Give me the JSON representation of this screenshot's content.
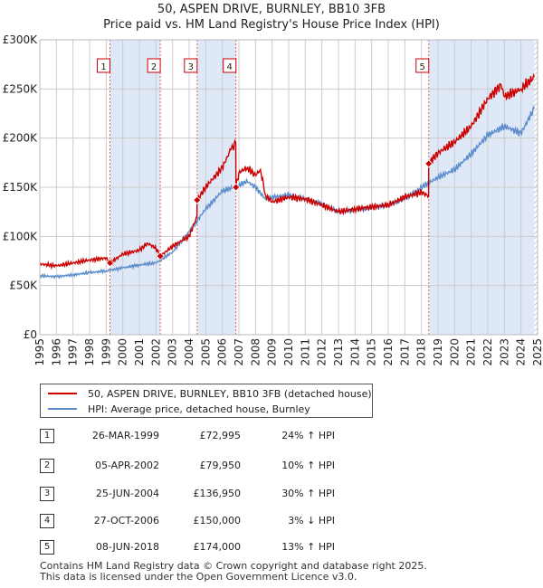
{
  "title": "50, ASPEN DRIVE, BURNLEY, BB10 3FB",
  "subtitle": "Price paid vs. HM Land Registry's House Price Index (HPI)",
  "colors": {
    "property": "#cc0000",
    "hpi": "#5b8ccc",
    "shade": "#dfe8f7",
    "grid": "#cccccc",
    "vline": "#e06060"
  },
  "chart_data": {
    "type": "line",
    "xlabel": "",
    "ylabel": "",
    "xlim": [
      1995,
      2025
    ],
    "ylim": [
      0,
      300000
    ],
    "grid": true,
    "y_ticks": [
      0,
      50000,
      100000,
      150000,
      200000,
      250000,
      300000
    ],
    "y_tick_labels": [
      "£0",
      "£50K",
      "£100K",
      "£150K",
      "£200K",
      "£250K",
      "£300K"
    ],
    "x_ticks": [
      1995,
      1996,
      1997,
      1998,
      1999,
      2000,
      2001,
      2002,
      2003,
      2004,
      2005,
      2006,
      2007,
      2008,
      2009,
      2010,
      2011,
      2012,
      2013,
      2014,
      2015,
      2016,
      2017,
      2018,
      2019,
      2020,
      2021,
      2022,
      2023,
      2024,
      2025
    ],
    "x_tick_labels": [
      "1995",
      "1996",
      "1997",
      "1998",
      "1999",
      "2000",
      "2001",
      "2002",
      "2003",
      "2004",
      "2005",
      "2006",
      "2007",
      "2008",
      "2009",
      "2010",
      "2011",
      "2012",
      "2013",
      "2014",
      "2015",
      "2016",
      "2017",
      "2018",
      "2019",
      "2020",
      "2021",
      "2022",
      "2023",
      "2024",
      "2025"
    ],
    "shaded_ranges": [
      [
        1999.23,
        2002.26
      ],
      [
        2004.48,
        2006.82
      ],
      [
        2018.44,
        2025
      ]
    ],
    "hatched_range": [
      2024.8,
      2025
    ],
    "sales": [
      {
        "label": "1",
        "x": 1999.23,
        "y": 72995
      },
      {
        "label": "2",
        "x": 2002.26,
        "y": 79950
      },
      {
        "label": "3",
        "x": 2004.48,
        "y": 136950
      },
      {
        "label": "4",
        "x": 2006.82,
        "y": 150000
      },
      {
        "label": "5",
        "x": 2018.44,
        "y": 174000
      }
    ],
    "series": [
      {
        "name": "50, ASPEN DRIVE, BURNLEY, BB10 3FB (detached house)",
        "color": "#cc0000",
        "x": [
          1995,
          1996,
          1997,
          1998,
          1999,
          1999.23,
          2000,
          2001,
          2001.5,
          2002,
          2002.26,
          2003,
          2004,
          2004.47,
          2004.48,
          2005,
          2006,
          2006.5,
          2006.81,
          2006.82,
          2007,
          2007.5,
          2008,
          2008.3,
          2008.6,
          2009,
          2010,
          2011,
          2012,
          2013,
          2014,
          2015,
          2016,
          2017,
          2018,
          2018.43,
          2018.44,
          2019,
          2020,
          2021,
          2022,
          2022.8,
          2023,
          2024,
          2024.8
        ],
        "values": [
          72000,
          70000,
          73000,
          76000,
          78000,
          72995,
          82000,
          86000,
          93000,
          88000,
          79950,
          90000,
          100000,
          120000,
          136950,
          150000,
          170000,
          188000,
          195000,
          150000,
          165000,
          170000,
          162000,
          168000,
          142000,
          135000,
          140000,
          138000,
          132000,
          125000,
          128000,
          130000,
          132000,
          140000,
          145000,
          141000,
          174000,
          185000,
          196000,
          212000,
          240000,
          254000,
          242000,
          250000,
          262000
        ]
      },
      {
        "name": "HPI: Average price, detached house, Burnley",
        "color": "#5b8ccc",
        "x": [
          1995,
          1996,
          1997,
          1998,
          1999,
          2000,
          2001,
          2002,
          2003,
          2004,
          2005,
          2006,
          2007,
          2007.5,
          2008,
          2008.6,
          2009,
          2010,
          2011,
          2012,
          2013,
          2014,
          2015,
          2016,
          2017,
          2018,
          2019,
          2020,
          2021,
          2022,
          2023,
          2024,
          2024.8
        ],
        "values": [
          60000,
          59000,
          61000,
          63000,
          65000,
          68000,
          71000,
          73000,
          84000,
          105000,
          128000,
          146000,
          152000,
          156000,
          150000,
          138000,
          140000,
          142000,
          138000,
          133000,
          125000,
          127000,
          129000,
          132000,
          138000,
          150000,
          160000,
          168000,
          184000,
          203000,
          212000,
          205000,
          230000
        ]
      }
    ]
  },
  "legend": {
    "property_label": "50, ASPEN DRIVE, BURNLEY, BB10 3FB (detached house)",
    "hpi_label": "HPI: Average price, detached house, Burnley"
  },
  "transactions": [
    {
      "num": "1",
      "date": "26-MAR-1999",
      "price": "£72,995",
      "hpi": "24% ↑ HPI"
    },
    {
      "num": "2",
      "date": "05-APR-2002",
      "price": "£79,950",
      "hpi": "10% ↑ HPI"
    },
    {
      "num": "3",
      "date": "25-JUN-2004",
      "price": "£136,950",
      "hpi": "30% ↑ HPI"
    },
    {
      "num": "4",
      "date": "27-OCT-2006",
      "price": "£150,000",
      "hpi": "3% ↓ HPI"
    },
    {
      "num": "5",
      "date": "08-JUN-2018",
      "price": "£174,000",
      "hpi": "13% ↑ HPI"
    }
  ],
  "footer": {
    "line1": "Contains HM Land Registry data © Crown copyright and database right 2025.",
    "line2": "This data is licensed under the Open Government Licence v3.0."
  }
}
